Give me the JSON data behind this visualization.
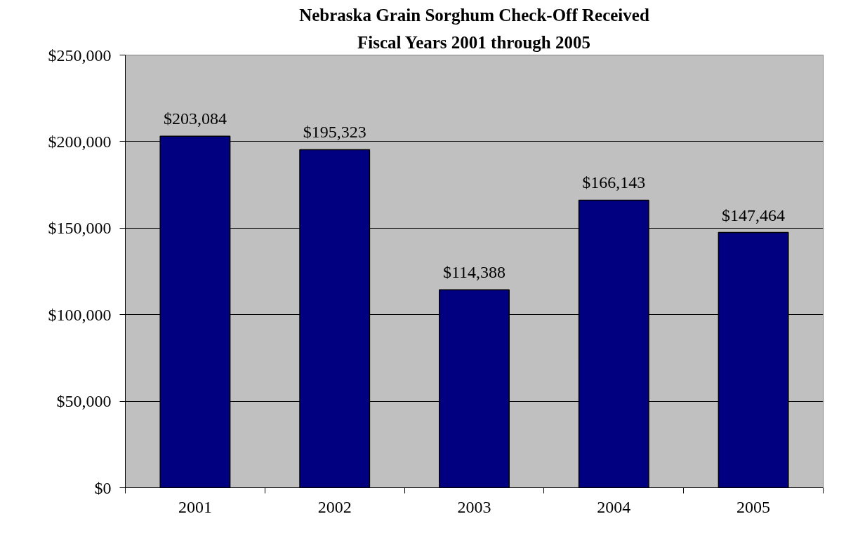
{
  "chart_data": {
    "type": "bar",
    "title": "Nebraska Grain Sorghum Check-Off Received",
    "subtitle": "Fiscal Years 2001 through 2005",
    "categories": [
      "2001",
      "2002",
      "2003",
      "2004",
      "2005"
    ],
    "values": [
      203084,
      195323,
      114388,
      166143,
      147464
    ],
    "value_labels": [
      "$203,084",
      "$195,323",
      "$114,388",
      "$166,143",
      "$147,464"
    ],
    "color": "#000080",
    "ylim": [
      0,
      250000
    ],
    "yticks": [
      {
        "value": 0,
        "label": "$0"
      },
      {
        "value": 50000,
        "label": "$50,000"
      },
      {
        "value": 100000,
        "label": "$100,000"
      },
      {
        "value": 150000,
        "label": "$150,000"
      },
      {
        "value": 200000,
        "label": "$200,000"
      },
      {
        "value": 250000,
        "label": "$250,000"
      }
    ],
    "grid": "y"
  }
}
